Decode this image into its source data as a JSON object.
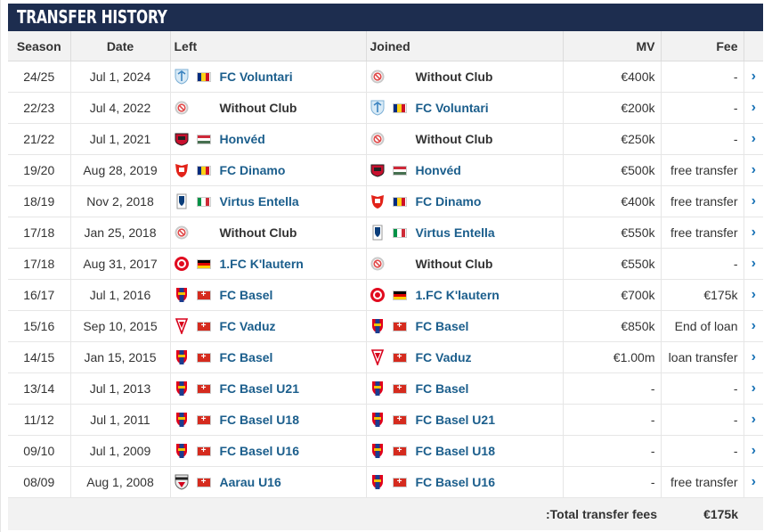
{
  "title": "TRANSFER HISTORY",
  "columns": {
    "season": "Season",
    "date": "Date",
    "left": "Left",
    "joined": "Joined",
    "mv": "MV",
    "fee": "Fee"
  },
  "transfers": [
    {
      "season": "24/25",
      "date": "Jul 1, 2024",
      "left": {
        "name": "FC Voluntari",
        "crest": "voluntari",
        "flag": "ro"
      },
      "joined": {
        "name": "Without Club",
        "crest": "noclub",
        "flag": ""
      },
      "mv": "€400k",
      "fee": "-"
    },
    {
      "season": "22/23",
      "date": "Jul 4, 2022",
      "left": {
        "name": "Without Club",
        "crest": "noclub",
        "flag": ""
      },
      "joined": {
        "name": "FC Voluntari",
        "crest": "voluntari",
        "flag": "ro"
      },
      "mv": "€200k",
      "fee": "-"
    },
    {
      "season": "21/22",
      "date": "Jul 1, 2021",
      "left": {
        "name": "Honvéd",
        "crest": "honved",
        "flag": "hu"
      },
      "joined": {
        "name": "Without Club",
        "crest": "noclub",
        "flag": ""
      },
      "mv": "€250k",
      "fee": "-"
    },
    {
      "season": "19/20",
      "date": "Aug 28, 2019",
      "left": {
        "name": "FC Dinamo",
        "crest": "dinamo",
        "flag": "ro"
      },
      "joined": {
        "name": "Honvéd",
        "crest": "honved",
        "flag": "hu"
      },
      "mv": "€500k",
      "fee": "free transfer"
    },
    {
      "season": "18/19",
      "date": "Nov 2, 2018",
      "left": {
        "name": "Virtus Entella",
        "crest": "entella",
        "flag": "it"
      },
      "joined": {
        "name": "FC Dinamo",
        "crest": "dinamo",
        "flag": "ro"
      },
      "mv": "€400k",
      "fee": "free transfer"
    },
    {
      "season": "17/18",
      "date": "Jan 25, 2018",
      "left": {
        "name": "Without Club",
        "crest": "noclub",
        "flag": ""
      },
      "joined": {
        "name": "Virtus Entella",
        "crest": "entella",
        "flag": "it"
      },
      "mv": "€550k",
      "fee": "free transfer"
    },
    {
      "season": "17/18",
      "date": "Aug 31, 2017",
      "left": {
        "name": "1.FC K'lautern",
        "crest": "kaiserslautern",
        "flag": "de"
      },
      "joined": {
        "name": "Without Club",
        "crest": "noclub",
        "flag": ""
      },
      "mv": "€550k",
      "fee": "-"
    },
    {
      "season": "16/17",
      "date": "Jul 1, 2016",
      "left": {
        "name": "FC Basel",
        "crest": "basel",
        "flag": "ch"
      },
      "joined": {
        "name": "1.FC K'lautern",
        "crest": "kaiserslautern",
        "flag": "de"
      },
      "mv": "€700k",
      "fee": "€175k"
    },
    {
      "season": "15/16",
      "date": "Sep 10, 2015",
      "left": {
        "name": "FC Vaduz",
        "crest": "vaduz",
        "flag": "ch"
      },
      "joined": {
        "name": "FC Basel",
        "crest": "basel",
        "flag": "ch"
      },
      "mv": "€850k",
      "fee": "End of loan"
    },
    {
      "season": "14/15",
      "date": "Jan 15, 2015",
      "left": {
        "name": "FC Basel",
        "crest": "basel",
        "flag": "ch"
      },
      "joined": {
        "name": "FC Vaduz",
        "crest": "vaduz",
        "flag": "ch"
      },
      "mv": "€1.00m",
      "fee": "loan transfer"
    },
    {
      "season": "13/14",
      "date": "Jul 1, 2013",
      "left": {
        "name": "FC Basel U21",
        "crest": "basel",
        "flag": "ch"
      },
      "joined": {
        "name": "FC Basel",
        "crest": "basel",
        "flag": "ch"
      },
      "mv": "-",
      "fee": "-"
    },
    {
      "season": "11/12",
      "date": "Jul 1, 2011",
      "left": {
        "name": "FC Basel U18",
        "crest": "basel",
        "flag": "ch"
      },
      "joined": {
        "name": "FC Basel U21",
        "crest": "basel",
        "flag": "ch"
      },
      "mv": "-",
      "fee": "-"
    },
    {
      "season": "09/10",
      "date": "Jul 1, 2009",
      "left": {
        "name": "FC Basel U16",
        "crest": "basel",
        "flag": "ch"
      },
      "joined": {
        "name": "FC Basel U18",
        "crest": "basel",
        "flag": "ch"
      },
      "mv": "-",
      "fee": "-"
    },
    {
      "season": "08/09",
      "date": "Aug 1, 2008",
      "left": {
        "name": "Aarau U16",
        "crest": "aarau",
        "flag": "ch"
      },
      "joined": {
        "name": "FC Basel U16",
        "crest": "basel",
        "flag": "ch"
      },
      "mv": "-",
      "fee": "free transfer"
    }
  ],
  "total": {
    "label": "Total transfer fees:",
    "value": "€175k"
  },
  "row_arrow_icon": "chevron-right-icon",
  "colors": {
    "header_bg": "#1d2d4f",
    "link": "#1b5e8c",
    "arrow": "#1a73b6",
    "thead_bg": "#f2f2f2"
  }
}
